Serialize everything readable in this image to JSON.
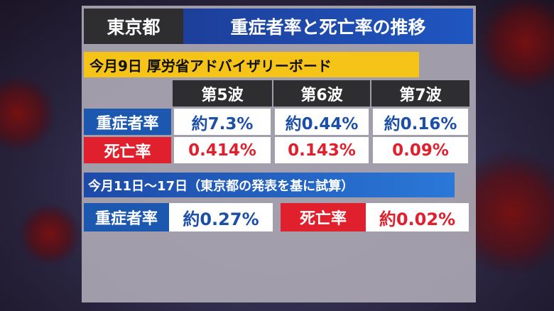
{
  "header": {
    "region": "東京都",
    "title": "重症者率と死亡率の推移"
  },
  "section1": {
    "title": "今月9日 厚労省アドバイザリーボード",
    "columns": [
      "第5波",
      "第6波",
      "第7波"
    ],
    "rows": [
      {
        "label": "重症者率",
        "cells": [
          "約7.3%",
          "約0.44%",
          "約0.16%"
        ]
      },
      {
        "label": "死亡率",
        "cells": [
          "0.414%",
          "0.143%",
          "0.09%"
        ]
      }
    ]
  },
  "section2": {
    "title": "今月11日～17日（東京都の発表を基に試算）",
    "items": [
      {
        "label": "重症者率",
        "value": "約0.27%"
      },
      {
        "label": "死亡率",
        "value": "約0.02%"
      }
    ]
  }
}
